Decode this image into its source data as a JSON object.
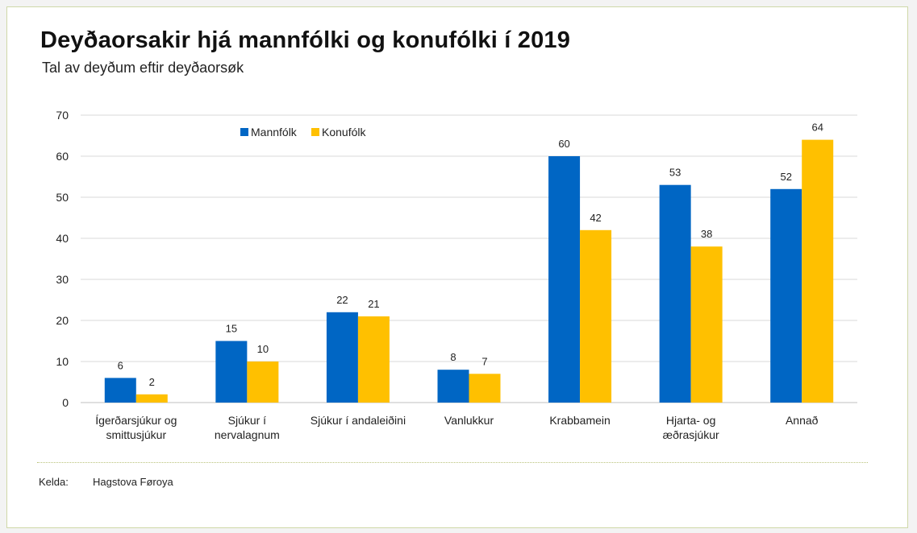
{
  "title": "Deyðaorsakir hjá mannfólki og konufólki í 2019",
  "subtitle": "Tal av deyðum eftir deyðaorsøk",
  "source": {
    "label": "Kelda:",
    "value": "Hagstova Føroya"
  },
  "colors": {
    "mannfolk": "#0066c4",
    "konufolk": "#ffc000",
    "grid": "#d9d9d9",
    "frame": "#cfd8a8"
  },
  "chart_data": {
    "type": "bar",
    "categories": [
      [
        "Ígerðarsjúkur og",
        "smittusjúkur"
      ],
      [
        "Sjúkur í",
        "nervalagnum"
      ],
      [
        "Sjúkur í andaleiðini"
      ],
      [
        "Vanlukkur"
      ],
      [
        "Krabbamein"
      ],
      [
        "Hjarta- og",
        "æðrasjúkur"
      ],
      [
        "Annað"
      ]
    ],
    "series": [
      {
        "name": "Mannfólk",
        "values": [
          6,
          15,
          22,
          8,
          60,
          53,
          52
        ]
      },
      {
        "name": "Konufólk",
        "values": [
          2,
          10,
          21,
          7,
          42,
          38,
          64
        ]
      }
    ],
    "yticks": [
      0,
      10,
      20,
      30,
      40,
      50,
      60,
      70
    ],
    "ylim": [
      0,
      70
    ],
    "grid": true,
    "data_labels": true,
    "legend_position": "top-left inside plot"
  }
}
